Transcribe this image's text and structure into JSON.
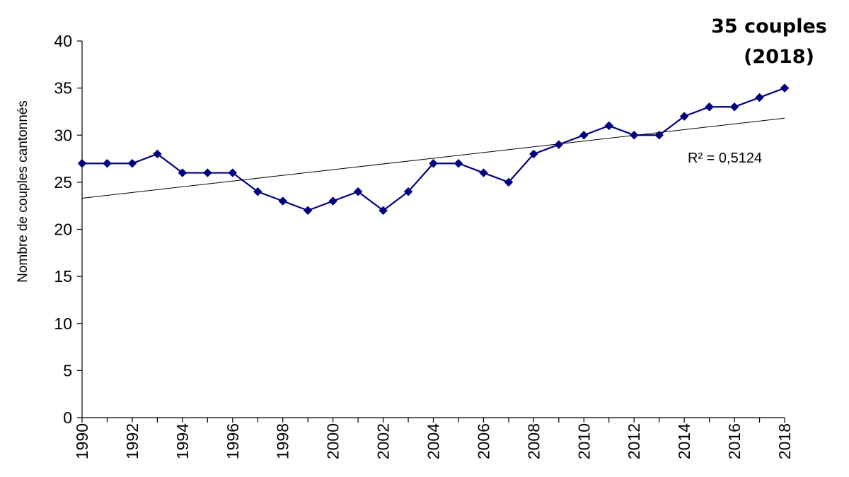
{
  "chart_data": {
    "type": "line",
    "title": "",
    "xlabel": "",
    "ylabel": "Nombre de couples cantonnés",
    "x": [
      1990,
      1991,
      1992,
      1993,
      1994,
      1995,
      1996,
      1997,
      1998,
      1999,
      2000,
      2001,
      2002,
      2003,
      2004,
      2005,
      2006,
      2007,
      2008,
      2009,
      2010,
      2011,
      2012,
      2013,
      2014,
      2015,
      2016,
      2017,
      2018
    ],
    "x_tick_labels": [
      "1990",
      "1992",
      "1994",
      "1996",
      "1998",
      "2000",
      "2002",
      "2004",
      "2006",
      "2008",
      "2010",
      "2012",
      "2014",
      "2016",
      "2018"
    ],
    "y_tick_labels": [
      "0",
      "5",
      "10",
      "15",
      "20",
      "25",
      "30",
      "35",
      "40"
    ],
    "xlim": [
      1990,
      2018
    ],
    "ylim": [
      0,
      40
    ],
    "grid": false,
    "series": [
      {
        "color": "#000080",
        "marker": "diamond",
        "values": [
          27,
          27,
          27,
          28,
          26,
          26,
          26,
          24,
          23,
          22,
          23,
          24,
          22,
          24,
          27,
          27,
          26,
          25,
          28,
          29,
          30,
          31,
          30,
          30,
          32,
          33,
          33,
          34,
          35
        ]
      }
    ],
    "trendline": {
      "type": "linear",
      "color": "#000000",
      "start": [
        1990,
        23.3
      ],
      "end": [
        2018,
        31.8
      ],
      "r2_label": "R² = 0,5124"
    },
    "annotations": [
      "35 couples",
      "(2018)"
    ]
  }
}
